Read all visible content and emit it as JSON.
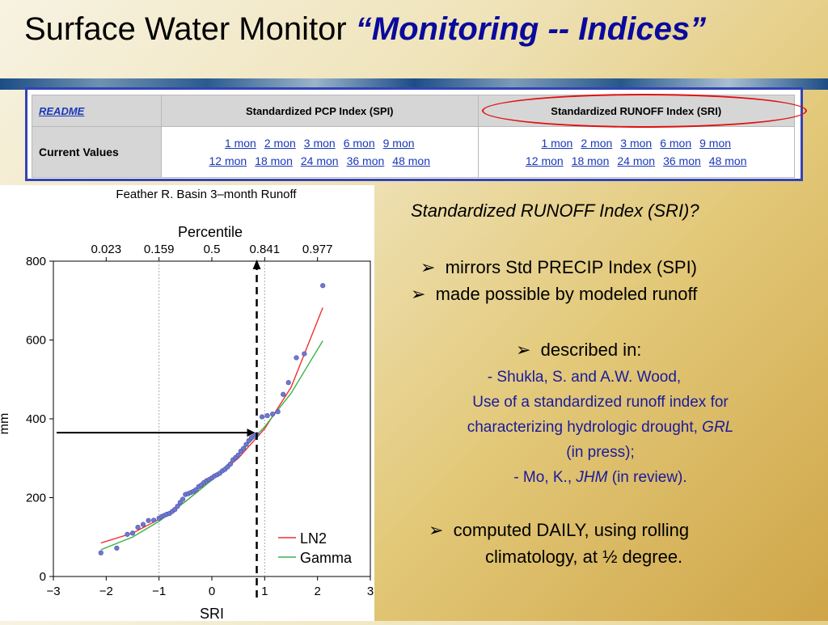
{
  "title": {
    "main": "Surface Water Monitor ",
    "emphasis": "“Monitoring -- Indices”"
  },
  "index_table": {
    "readme": "README",
    "spi_header": "Standardized PCP Index (SPI)",
    "sri_header": "Standardized RUNOFF Index (SRI)",
    "row_label": "Current Values",
    "spi_links_row1": [
      "1 mon",
      "2 mon",
      "3 mon",
      "6 mon",
      "9 mon"
    ],
    "spi_links_row2": [
      "12 mon",
      "18 mon",
      "24 mon",
      "36 mon",
      "48 mon"
    ],
    "sri_links_row1": [
      "1 mon",
      "2 mon",
      "3 mon",
      "6 mon",
      "9 mon"
    ],
    "sri_links_row2": [
      "12 mon",
      "18 mon",
      "24 mon",
      "36 mon",
      "48 mon"
    ]
  },
  "text_panel": {
    "question": "Standardized RUNOFF Index (SRI)?",
    "bullet_glyph": "➢",
    "bullet1": "mirrors Std PRECIP Index (SPI)",
    "bullet2": "made possible by modeled runoff",
    "bullet3": "described in:",
    "ref1_line1": "- Shukla, S. and A.W. Wood,",
    "ref1_line2": "Use of a standardized runoff index for",
    "ref1_line3a": "characterizing hydrologic drought, ",
    "ref1_line3b": "GRL",
    "ref1_line4": "(in press);",
    "ref2a": "- Mo, K., ",
    "ref2b": "JHM",
    "ref2c": " (in review).",
    "bullet4_line1": "computed DAILY, using rolling",
    "bullet4_line2": "climatology, at ½ degree."
  },
  "chart_data": {
    "type": "scatter",
    "title": "Feather R. Basin 3–month Runoff",
    "xlabel": "SRI",
    "ylabel": "mm",
    "top_axis_label": "Percentile",
    "xlim": [
      -3,
      3
    ],
    "ylim": [
      0,
      800
    ],
    "x_ticks": [
      "−3",
      "−2",
      "−1",
      "0",
      "1",
      "2",
      "3"
    ],
    "y_ticks": [
      "0",
      "200",
      "400",
      "600",
      "800"
    ],
    "top_ticks": [
      {
        "sri": -2,
        "label": "0.023"
      },
      {
        "sri": -1,
        "label": "0.159"
      },
      {
        "sri": 0,
        "label": "0.5"
      },
      {
        "sri": 1,
        "label": "0.841"
      },
      {
        "sri": 2,
        "label": "0.977"
      }
    ],
    "vertical_grid_at": [
      -1,
      1
    ],
    "legend_position": "bottom-right",
    "observed": {
      "color": "#6f77cf",
      "points": [
        [
          -2.1,
          60
        ],
        [
          -1.8,
          72
        ],
        [
          -1.6,
          107
        ],
        [
          -1.5,
          110
        ],
        [
          -1.4,
          125
        ],
        [
          -1.3,
          132
        ],
        [
          -1.2,
          142
        ],
        [
          -1.1,
          143
        ],
        [
          -1.0,
          148
        ],
        [
          -0.95,
          152
        ],
        [
          -0.9,
          155
        ],
        [
          -0.85,
          158
        ],
        [
          -0.8,
          160
        ],
        [
          -0.75,
          165
        ],
        [
          -0.7,
          170
        ],
        [
          -0.65,
          178
        ],
        [
          -0.6,
          188
        ],
        [
          -0.55,
          196
        ],
        [
          -0.5,
          208
        ],
        [
          -0.45,
          210
        ],
        [
          -0.4,
          213
        ],
        [
          -0.35,
          216
        ],
        [
          -0.3,
          220
        ],
        [
          -0.25,
          228
        ],
        [
          -0.2,
          232
        ],
        [
          -0.15,
          238
        ],
        [
          -0.1,
          243
        ],
        [
          -0.05,
          246
        ],
        [
          0.0,
          250
        ],
        [
          0.05,
          255
        ],
        [
          0.1,
          258
        ],
        [
          0.15,
          262
        ],
        [
          0.2,
          268
        ],
        [
          0.25,
          272
        ],
        [
          0.3,
          278
        ],
        [
          0.35,
          285
        ],
        [
          0.4,
          296
        ],
        [
          0.45,
          302
        ],
        [
          0.5,
          308
        ],
        [
          0.55,
          318
        ],
        [
          0.6,
          325
        ],
        [
          0.65,
          335
        ],
        [
          0.7,
          345
        ],
        [
          0.75,
          352
        ],
        [
          0.8,
          356
        ],
        [
          0.85,
          360
        ],
        [
          0.95,
          405
        ],
        [
          1.05,
          408
        ],
        [
          1.15,
          412
        ],
        [
          1.25,
          418
        ],
        [
          1.35,
          462
        ],
        [
          1.45,
          492
        ],
        [
          1.6,
          555
        ],
        [
          1.75,
          565
        ],
        [
          2.1,
          738
        ]
      ]
    },
    "series": [
      {
        "name": "LN2",
        "color": "#f03030",
        "x": [
          -2.1,
          -1.5,
          -1.0,
          -0.5,
          0.0,
          0.5,
          1.0,
          1.5,
          2.1
        ],
        "y": [
          85,
          110,
          145,
          190,
          245,
          300,
          375,
          480,
          682
        ]
      },
      {
        "name": "Gamma",
        "color": "#39b34a",
        "x": [
          -2.1,
          -1.5,
          -1.0,
          -0.5,
          0.0,
          0.5,
          1.0,
          1.5,
          2.1
        ],
        "y": [
          68,
          100,
          140,
          190,
          245,
          310,
          380,
          465,
          598
        ]
      }
    ],
    "annotation_value": {
      "sri": 0.85,
      "mm": 365
    }
  },
  "colors": {
    "title_emphasis": "#0a0a9c",
    "table_frame": "#3343b5",
    "link": "#1a38b8",
    "oval": "#e01010",
    "ref_text": "#1a1a9c"
  }
}
